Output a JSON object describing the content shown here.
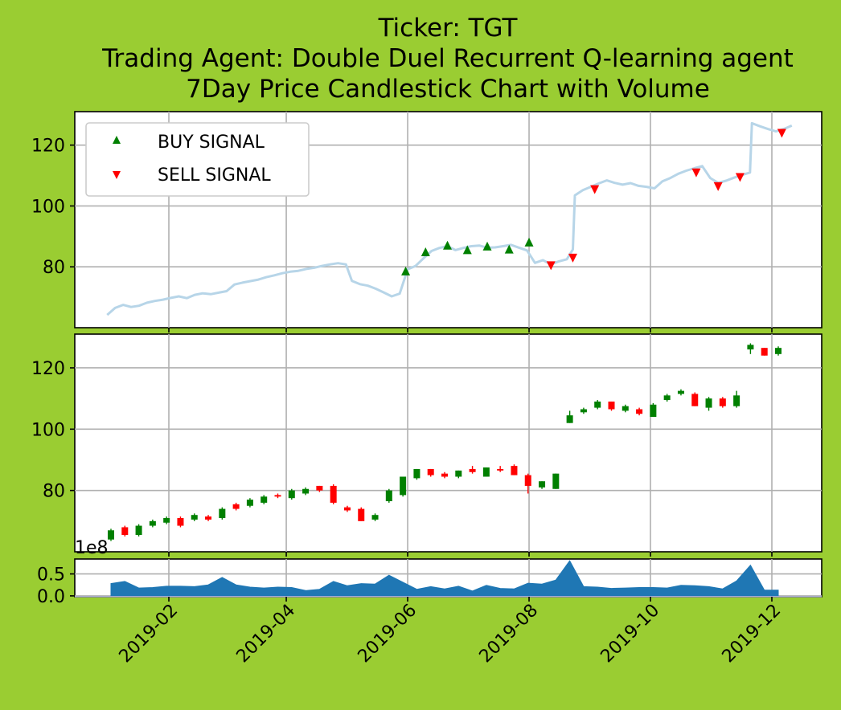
{
  "chart_data": {
    "type": "candlestick",
    "title": [
      "Ticker: TGT",
      "Trading Agent: Double Duel Recurrent Q-learning agent",
      "7Day Price Candlestick Chart with Volume"
    ],
    "colors": {
      "background": "#9acd32",
      "price_line": "#b7d5e8",
      "buy": "#008000",
      "sell": "#ff0000",
      "up_candle": "#008000",
      "down_candle": "#ff0000",
      "volume_fill": "#1f77b4"
    },
    "x_ticks": [
      "2019-02",
      "2019-04",
      "2019-06",
      "2019-08",
      "2019-10",
      "2019-12"
    ],
    "legend": {
      "position": "upper-left",
      "entries": [
        "BUY SIGNAL",
        "SELL SIGNAL"
      ]
    },
    "price_panel": {
      "ylim": [
        60,
        131
      ],
      "yticks": [
        80,
        100,
        120
      ],
      "grid": true,
      "line": [
        [
          "2019-01-01",
          64.2
        ],
        [
          "2019-01-05",
          66.5
        ],
        [
          "2019-01-09",
          67.5
        ],
        [
          "2019-01-13",
          66.8
        ],
        [
          "2019-01-17",
          67.2
        ],
        [
          "2019-01-21",
          68.2
        ],
        [
          "2019-01-25",
          68.8
        ],
        [
          "2019-01-29",
          69.2
        ],
        [
          "2019-02-02",
          69.8
        ],
        [
          "2019-02-06",
          70.3
        ],
        [
          "2019-02-10",
          69.7
        ],
        [
          "2019-02-14",
          70.8
        ],
        [
          "2019-02-18",
          71.3
        ],
        [
          "2019-02-22",
          71.0
        ],
        [
          "2019-02-26",
          71.5
        ],
        [
          "2019-03-02",
          72.0
        ],
        [
          "2019-03-06",
          74.2
        ],
        [
          "2019-03-10",
          74.8
        ],
        [
          "2019-03-14",
          75.3
        ],
        [
          "2019-03-18",
          75.8
        ],
        [
          "2019-03-22",
          76.6
        ],
        [
          "2019-03-26",
          77.2
        ],
        [
          "2019-03-30",
          77.9
        ],
        [
          "2019-04-03",
          78.4
        ],
        [
          "2019-04-07",
          78.7
        ],
        [
          "2019-04-11",
          79.3
        ],
        [
          "2019-04-15",
          79.7
        ],
        [
          "2019-04-19",
          80.3
        ],
        [
          "2019-04-23",
          80.8
        ],
        [
          "2019-04-27",
          81.2
        ],
        [
          "2019-05-01",
          80.8
        ],
        [
          "2019-05-04",
          75.4
        ],
        [
          "2019-05-08",
          74.3
        ],
        [
          "2019-05-12",
          73.8
        ],
        [
          "2019-05-16",
          72.8
        ],
        [
          "2019-05-20",
          71.6
        ],
        [
          "2019-05-24",
          70.3
        ],
        [
          "2019-05-28",
          71.2
        ],
        [
          "2019-06-01",
          79.2
        ],
        [
          "2019-06-05",
          80.3
        ],
        [
          "2019-06-09",
          82.8
        ],
        [
          "2019-06-13",
          85.2
        ],
        [
          "2019-06-17",
          86.2
        ],
        [
          "2019-06-21",
          86.8
        ],
        [
          "2019-06-25",
          85.5
        ],
        [
          "2019-06-29",
          86.2
        ],
        [
          "2019-07-03",
          86.8
        ],
        [
          "2019-07-07",
          87.0
        ],
        [
          "2019-07-11",
          86.3
        ],
        [
          "2019-07-15",
          86.4
        ],
        [
          "2019-07-19",
          86.8
        ],
        [
          "2019-07-23",
          87.2
        ],
        [
          "2019-07-27",
          86.3
        ],
        [
          "2019-07-31",
          85.4
        ],
        [
          "2019-08-04",
          81.3
        ],
        [
          "2019-08-08",
          82.2
        ],
        [
          "2019-08-12",
          80.8
        ],
        [
          "2019-08-16",
          81.8
        ],
        [
          "2019-08-20",
          82.5
        ],
        [
          "2019-08-23",
          85.7
        ],
        [
          "2019-08-24",
          103.5
        ],
        [
          "2019-08-28",
          105.2
        ],
        [
          "2019-09-01",
          106.3
        ],
        [
          "2019-09-05",
          107.4
        ],
        [
          "2019-09-09",
          108.4
        ],
        [
          "2019-09-13",
          107.6
        ],
        [
          "2019-09-17",
          107.0
        ],
        [
          "2019-09-21",
          107.5
        ],
        [
          "2019-09-25",
          106.6
        ],
        [
          "2019-09-29",
          106.3
        ],
        [
          "2019-10-03",
          105.8
        ],
        [
          "2019-10-07",
          108.1
        ],
        [
          "2019-10-11",
          109.2
        ],
        [
          "2019-10-15",
          110.6
        ],
        [
          "2019-10-19",
          111.6
        ],
        [
          "2019-10-23",
          112.4
        ],
        [
          "2019-10-27",
          113.1
        ],
        [
          "2019-10-31",
          109.2
        ],
        [
          "2019-11-04",
          107.6
        ],
        [
          "2019-11-08",
          108.3
        ],
        [
          "2019-11-12",
          109.3
        ],
        [
          "2019-11-16",
          110.2
        ],
        [
          "2019-11-20",
          111.0
        ],
        [
          "2019-11-21",
          127.2
        ],
        [
          "2019-11-25",
          126.2
        ],
        [
          "2019-11-29",
          125.3
        ],
        [
          "2019-12-03",
          124.5
        ],
        [
          "2019-12-07",
          125.3
        ],
        [
          "2019-12-11",
          126.4
        ]
      ],
      "buy_signals": [
        [
          "2019-05-31",
          78.5
        ],
        [
          "2019-06-10",
          84.8
        ],
        [
          "2019-06-21",
          87.0
        ],
        [
          "2019-07-01",
          85.5
        ],
        [
          "2019-07-11",
          86.7
        ],
        [
          "2019-07-22",
          85.7
        ],
        [
          "2019-08-01",
          88.0
        ]
      ],
      "sell_signals": [
        [
          "2019-08-12",
          80.5
        ],
        [
          "2019-08-23",
          83.0
        ],
        [
          "2019-09-03",
          105.5
        ],
        [
          "2019-10-24",
          111.0
        ],
        [
          "2019-11-04",
          106.5
        ],
        [
          "2019-11-15",
          109.5
        ],
        [
          "2019-12-06",
          124.0
        ]
      ]
    },
    "candle_panel": {
      "ylim": [
        60,
        131
      ],
      "yticks": [
        80,
        100,
        120
      ],
      "grid": true,
      "candles": [
        [
          "2019-01-01",
          64.0,
          67.0,
          63.5,
          67.5
        ],
        [
          "2019-01-11",
          68.0,
          65.5,
          65.0,
          68.5
        ],
        [
          "2019-01-21",
          65.5,
          68.5,
          65.0,
          69.0
        ],
        [
          "2019-01-31",
          68.5,
          70.0,
          68.0,
          70.5
        ],
        [
          "2019-02-10",
          69.5,
          71.0,
          69.0,
          71.5
        ],
        [
          "2019-02-20",
          71.0,
          68.5,
          68.0,
          71.5
        ],
        [
          "2019-03-02",
          70.5,
          72.0,
          70.0,
          72.5
        ],
        [
          "2019-03-12",
          71.5,
          70.5,
          70.0,
          72.0
        ],
        [
          "2019-03-22",
          71.0,
          74.0,
          70.5,
          74.5
        ],
        [
          "2019-04-01",
          75.5,
          74.0,
          73.5,
          76.0
        ],
        [
          "2019-04-11",
          75.0,
          77.0,
          74.5,
          77.5
        ],
        [
          "2019-04-21",
          76.0,
          78.0,
          75.5,
          78.5
        ],
        [
          "2019-05-01",
          78.5,
          78.0,
          77.5,
          79.0
        ],
        [
          "2019-05-11",
          77.5,
          80.0,
          77.0,
          80.5
        ],
        [
          "2019-05-21",
          79.0,
          80.5,
          78.5,
          81.0
        ],
        [
          "2019-05-31",
          81.5,
          80.0,
          79.5,
          81.5
        ],
        [
          "2019-06-10",
          81.5,
          76.0,
          75.5,
          82.0
        ],
        [
          "2019-06-20",
          74.5,
          73.5,
          73.0,
          75.0
        ],
        [
          "2019-06-30",
          74.0,
          70.0,
          70.0,
          74.5
        ],
        [
          "2019-07-10",
          70.5,
          72.0,
          70.0,
          72.5
        ],
        [
          "2019-07-20",
          76.5,
          80.0,
          76.0,
          80.5
        ],
        [
          "2019-07-30",
          78.5,
          84.5,
          78.0,
          84.5
        ],
        [
          "2019-08-09",
          84.0,
          87.0,
          83.5,
          87.0
        ],
        [
          "2019-08-19",
          87.0,
          85.0,
          84.5,
          87.0
        ],
        [
          "2019-08-29",
          85.5,
          84.5,
          84.0,
          86.0
        ],
        [
          "2019-09-08",
          84.5,
          86.5,
          84.0,
          86.5
        ],
        [
          "2019-09-18",
          87.0,
          86.0,
          85.5,
          88.0
        ],
        [
          "2019-09-28",
          84.5,
          87.5,
          84.5,
          87.5
        ],
        [
          "2019-10-08",
          87.0,
          86.5,
          86.0,
          88.0
        ],
        [
          "2019-10-18",
          88.0,
          85.0,
          85.0,
          88.5
        ],
        [
          "2019-10-28",
          85.0,
          81.5,
          79.0,
          85.5
        ],
        [
          "2019-11-07",
          81.0,
          83.0,
          80.5,
          83.0
        ],
        [
          "2019-11-17",
          80.5,
          85.5,
          80.5,
          85.5
        ],
        [
          "2019-11-27",
          102.0,
          104.5,
          102.0,
          106.0
        ],
        [
          "2019-12-07",
          105.5,
          106.5,
          105.0,
          107.0
        ],
        [
          "2019-12-17",
          107.0,
          109.0,
          106.5,
          109.5
        ],
        [
          "2019-12-27",
          109.0,
          106.5,
          106.0,
          109.0
        ],
        [
          "2020-01-06",
          106.0,
          107.5,
          105.5,
          108.0
        ],
        [
          "2020-01-16",
          106.5,
          105.0,
          104.5,
          107.0
        ],
        [
          "2020-01-26",
          104.0,
          108.0,
          104.0,
          108.5
        ],
        [
          "2020-02-05",
          109.5,
          111.0,
          109.0,
          111.5
        ],
        [
          "2020-02-15",
          111.5,
          112.5,
          111.0,
          113.0
        ],
        [
          "2020-02-25",
          111.5,
          107.5,
          107.5,
          112.0
        ],
        [
          "2020-03-07",
          107.0,
          110.0,
          106.0,
          110.5
        ],
        [
          "2020-03-17",
          110.0,
          107.5,
          107.0,
          110.5
        ],
        [
          "2020-03-27",
          107.5,
          111.0,
          107.0,
          112.5
        ],
        [
          "2020-04-06",
          126.0,
          127.5,
          124.5,
          128.0
        ],
        [
          "2020-04-16",
          126.5,
          124.0,
          124.0,
          126.5
        ],
        [
          "2020-04-26",
          124.5,
          126.5,
          124.0,
          127.0
        ]
      ]
    },
    "volume_panel": {
      "ylim": [
        -0.02,
        0.84
      ],
      "yticks": [
        "0.0",
        "0.5"
      ],
      "offset_label": "1e8",
      "grid": true,
      "volume": [
        [
          "2019-01-01",
          0.28
        ],
        [
          "2019-01-11",
          0.33
        ],
        [
          "2019-01-21",
          0.18
        ],
        [
          "2019-01-31",
          0.19
        ],
        [
          "2019-02-10",
          0.22
        ],
        [
          "2019-02-20",
          0.22
        ],
        [
          "2019-03-02",
          0.21
        ],
        [
          "2019-03-12",
          0.25
        ],
        [
          "2019-03-22",
          0.42
        ],
        [
          "2019-04-01",
          0.25
        ],
        [
          "2019-04-11",
          0.2
        ],
        [
          "2019-04-21",
          0.18
        ],
        [
          "2019-05-01",
          0.2
        ],
        [
          "2019-05-11",
          0.19
        ],
        [
          "2019-05-21",
          0.12
        ],
        [
          "2019-05-31",
          0.15
        ],
        [
          "2019-06-10",
          0.33
        ],
        [
          "2019-06-20",
          0.23
        ],
        [
          "2019-06-30",
          0.28
        ],
        [
          "2019-07-10",
          0.27
        ],
        [
          "2019-07-20",
          0.47
        ],
        [
          "2019-07-30",
          0.31
        ],
        [
          "2019-08-09",
          0.15
        ],
        [
          "2019-08-19",
          0.21
        ],
        [
          "2019-08-29",
          0.16
        ],
        [
          "2019-09-08",
          0.22
        ],
        [
          "2019-09-18",
          0.11
        ],
        [
          "2019-09-28",
          0.24
        ],
        [
          "2019-10-08",
          0.17
        ],
        [
          "2019-10-18",
          0.16
        ],
        [
          "2019-10-28",
          0.29
        ],
        [
          "2019-11-07",
          0.27
        ],
        [
          "2019-11-17",
          0.36
        ],
        [
          "2019-11-27",
          0.8
        ],
        [
          "2019-12-07",
          0.21
        ],
        [
          "2019-12-17",
          0.2
        ],
        [
          "2019-12-27",
          0.17
        ],
        [
          "2020-01-06",
          0.18
        ],
        [
          "2020-01-16",
          0.19
        ],
        [
          "2020-01-26",
          0.19
        ],
        [
          "2020-02-05",
          0.18
        ],
        [
          "2020-02-15",
          0.24
        ],
        [
          "2020-02-25",
          0.23
        ],
        [
          "2020-03-07",
          0.21
        ],
        [
          "2020-03-17",
          0.16
        ],
        [
          "2020-03-27",
          0.34
        ],
        [
          "2020-04-06",
          0.7
        ],
        [
          "2020-04-16",
          0.13
        ],
        [
          "2020-04-26",
          0.13
        ]
      ]
    }
  }
}
